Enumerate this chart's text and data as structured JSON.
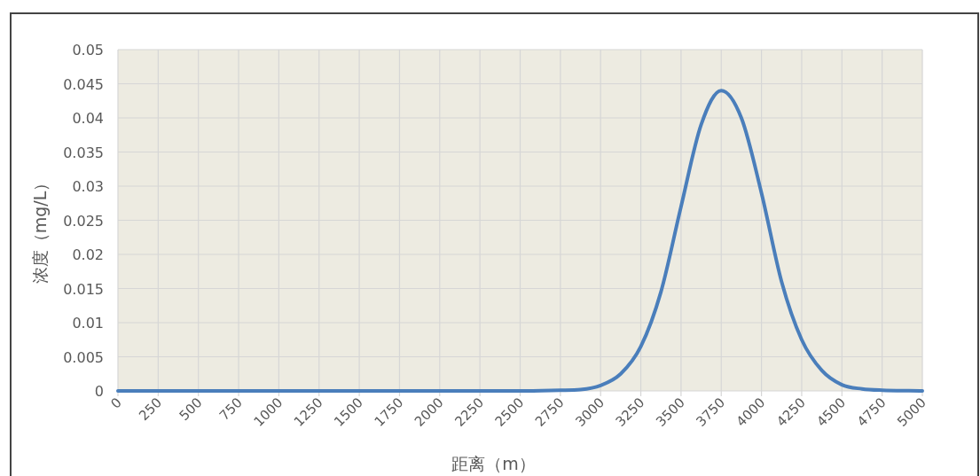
{
  "chart_data": {
    "type": "line",
    "xlabel": "距离（m）",
    "ylabel": "浓度（mg/L）",
    "x": [
      0,
      250,
      500,
      750,
      1000,
      1250,
      1500,
      1750,
      2000,
      2250,
      2500,
      2750,
      2875,
      3000,
      3125,
      3250,
      3375,
      3500,
      3625,
      3750,
      3875,
      4000,
      4125,
      4250,
      4375,
      4500,
      4625,
      4750,
      5000
    ],
    "series": [
      {
        "color": "#4a7ebb",
        "values": [
          0,
          0,
          0,
          0,
          0,
          0,
          0,
          0,
          0,
          0,
          0,
          0.0001,
          0.0002,
          0.0008,
          0.0025,
          0.0065,
          0.0145,
          0.027,
          0.039,
          0.044,
          0.04,
          0.029,
          0.016,
          0.0075,
          0.003,
          0.0009,
          0.0003,
          0.0001,
          0
        ]
      }
    ],
    "xlim": [
      0,
      5000
    ],
    "xticks": [
      0,
      250,
      500,
      750,
      1000,
      1250,
      1500,
      1750,
      2000,
      2250,
      2500,
      2750,
      3000,
      3250,
      3500,
      3750,
      4000,
      4250,
      4500,
      4750,
      5000
    ],
    "ylim": [
      0,
      0.05
    ],
    "yticks": [
      0,
      0.005,
      0.01,
      0.015,
      0.02,
      0.025,
      0.03,
      0.035,
      0.04,
      0.045,
      0.05
    ],
    "grid": true,
    "marker": "none",
    "line_style": "solid"
  }
}
